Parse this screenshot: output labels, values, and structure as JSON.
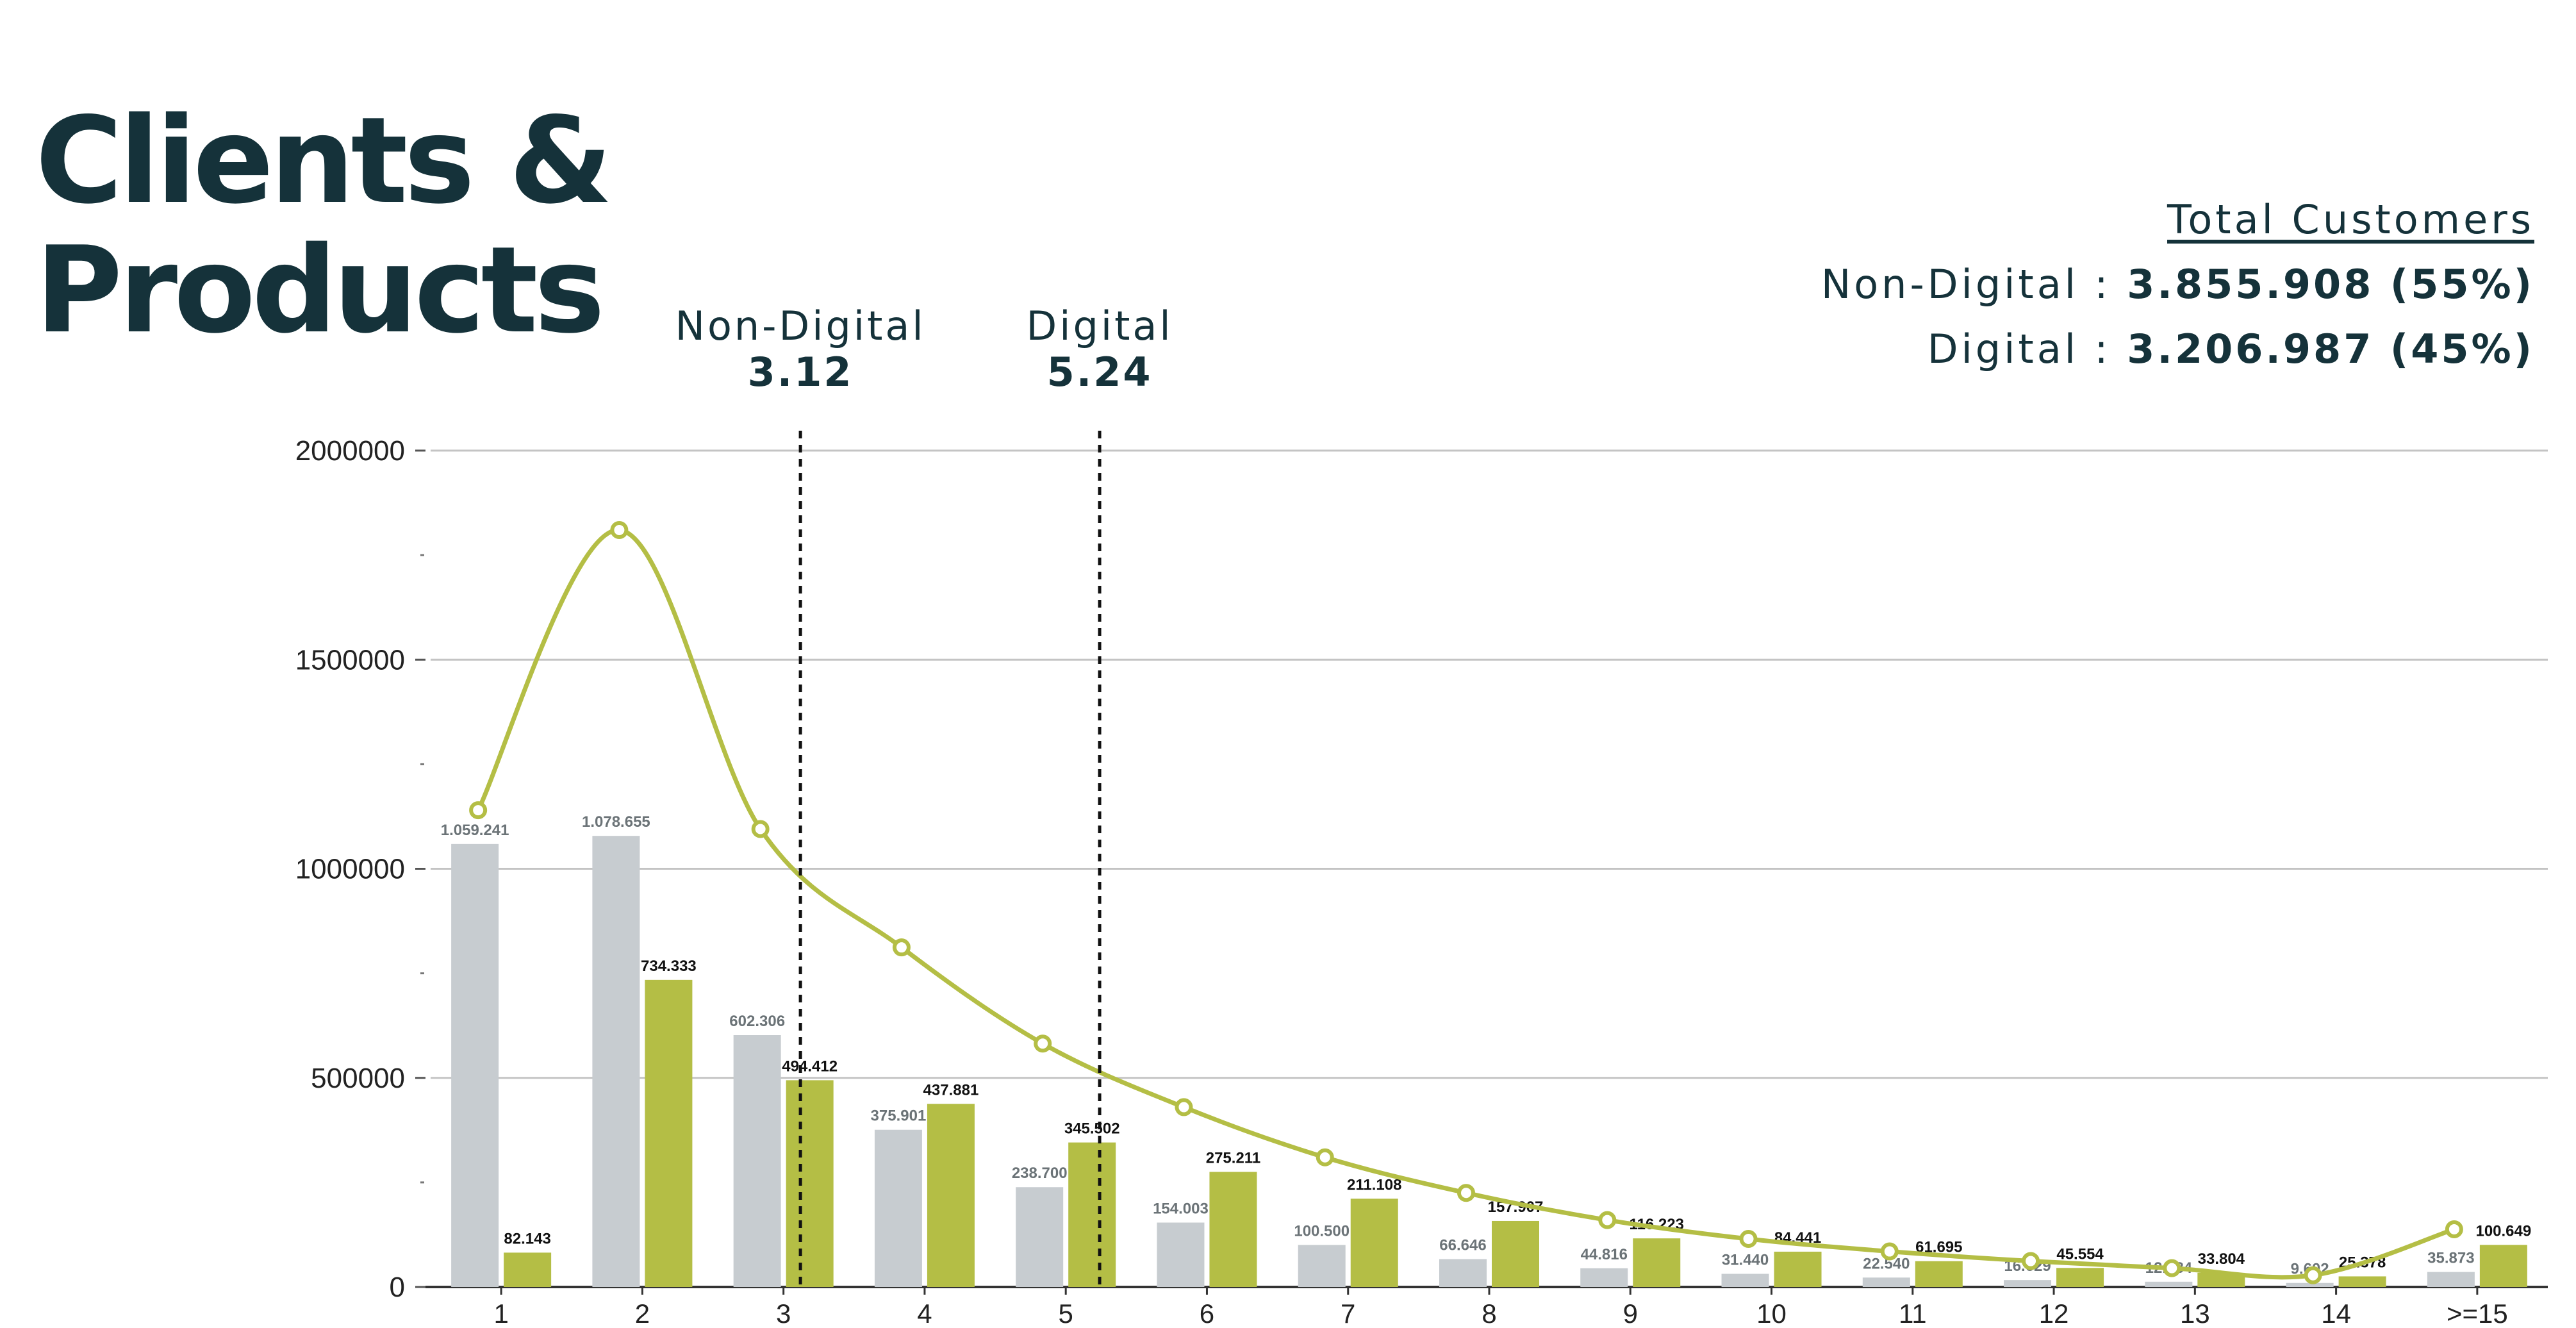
{
  "title_line1": "Clients &",
  "title_line2": "Products",
  "totals": {
    "heading": "Total Customers",
    "non_digital_label": "Non-Digital :",
    "non_digital_value": "3.855.908 (55%)",
    "digital_label": "Digital :",
    "digital_value": "3.206.987 (45%)"
  },
  "colors": {
    "non_digital": "#c7ccd0",
    "digital": "#b4be45",
    "text": "#15323a",
    "grid": "#c4c4c4"
  },
  "chart_data": {
    "type": "bar",
    "categories": [
      "1",
      "2",
      "3",
      "4",
      "5",
      "6",
      "7",
      "8",
      "9",
      "10",
      "11",
      "12",
      "13",
      "14",
      ">=15"
    ],
    "yticks": [
      "0",
      "500000",
      "1000000",
      "1500000",
      "2000000"
    ],
    "ylim": [
      0,
      2000000
    ],
    "grid": true,
    "series": [
      {
        "key": "non_digital",
        "values": [
          1059241,
          1078655,
          602306,
          375901,
          238700,
          154003,
          100500,
          66646,
          44816,
          31440,
          22540,
          16629,
          12584,
          9602,
          35873
        ],
        "labels": [
          "1.059.241",
          "1.078.655",
          "602.306",
          "375.901",
          "238.700",
          "154.003",
          "100.500",
          "66.646",
          "44.816",
          "31.440",
          "22.540",
          "16.629",
          "12.584",
          "9.602",
          "35.873"
        ]
      },
      {
        "key": "digital",
        "values": [
          82143,
          734333,
          494412,
          437881,
          345502,
          275211,
          211108,
          157907,
          116223,
          84441,
          61695,
          45554,
          33804,
          25378,
          100649
        ],
        "labels": [
          "82.143",
          "734.333",
          "494.412",
          "437.881",
          "345.502",
          "275.211",
          "211.108",
          "157.907",
          "116.223",
          "84.441",
          "61.695",
          "45.554",
          "33.804",
          "25.378",
          "100.649"
        ]
      },
      {
        "key": "trend",
        "type": "line",
        "values": [
          1140000,
          1810000,
          1095000,
          812000,
          582000,
          430000,
          310000,
          225000,
          160000,
          115000,
          85000,
          62000,
          45000,
          28000,
          138000
        ]
      }
    ],
    "markers": [
      {
        "label": "Non-Digital",
        "value_label": "3.12",
        "x": 3.12
      },
      {
        "label": "Digital",
        "value_label": "5.24",
        "x": 5.24
      }
    ]
  }
}
